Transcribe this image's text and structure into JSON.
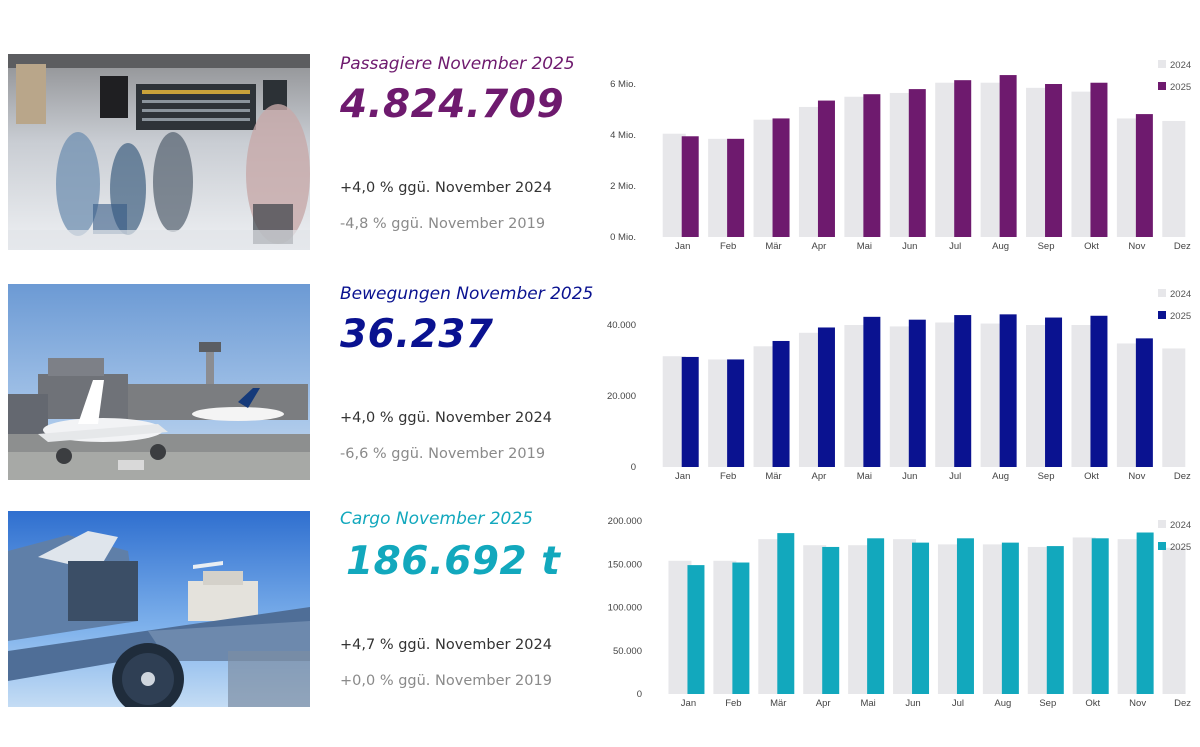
{
  "colors": {
    "prior": "#e7e7ea",
    "passengers": "#6e1a6e",
    "movements": "#0a1290",
    "cargo": "#12a8bd"
  },
  "kpis": [
    {
      "title": "Passagiere November 2025",
      "value": "4.824.709",
      "comparison_2024": "+4,0 % ggü. November 2024",
      "comparison_2019": "-4,8 % ggü. November 2019"
    },
    {
      "title": "Bewegungen November 2025",
      "value": "36.237",
      "comparison_2024": "+4,0 % ggü. November 2024",
      "comparison_2019": "-6,6 % ggü. November 2019"
    },
    {
      "title": "Cargo November 2025",
      "value": "186.692 t",
      "comparison_2024": "+4,7 % ggü. November 2024",
      "comparison_2019": "+0,0 % ggü. November 2019"
    }
  ],
  "images": [
    {
      "name": "terminal-crowd-photo"
    },
    {
      "name": "apron-aircraft-photo"
    },
    {
      "name": "cargo-loading-photo"
    }
  ],
  "chart_data": [
    {
      "type": "bar",
      "title": "Passagiere November 2025",
      "categories": [
        "Jan",
        "Feb",
        "Mär",
        "Apr",
        "Mai",
        "Jun",
        "Jul",
        "Aug",
        "Sep",
        "Okt",
        "Nov",
        "Dez"
      ],
      "series": [
        {
          "name": "2024",
          "values": [
            4.05,
            3.85,
            4.6,
            5.1,
            5.5,
            5.65,
            6.05,
            6.05,
            5.85,
            5.7,
            4.65,
            4.55
          ]
        },
        {
          "name": "2025",
          "values": [
            3.95,
            3.85,
            4.65,
            5.35,
            5.6,
            5.8,
            6.15,
            6.35,
            6.0,
            6.05,
            4.82,
            null
          ]
        }
      ],
      "ylim": [
        0,
        6
      ],
      "yticks": [
        0,
        2,
        4,
        6
      ],
      "ytick_labels": [
        "0 Mio.",
        "2 Mio.",
        "4 Mio.",
        "6 Mio."
      ],
      "legend": [
        "2024",
        "2025"
      ],
      "legend_position": "top-right"
    },
    {
      "type": "bar",
      "title": "Bewegungen November 2025",
      "categories": [
        "Jan",
        "Feb",
        "Mär",
        "Apr",
        "Mai",
        "Jun",
        "Jul",
        "Aug",
        "Sep",
        "Okt",
        "Nov",
        "Dez"
      ],
      "series": [
        {
          "name": "2024",
          "values": [
            31200,
            30300,
            34000,
            37800,
            40000,
            39600,
            40700,
            40400,
            40000,
            40000,
            34800,
            33400
          ]
        },
        {
          "name": "2025",
          "values": [
            31000,
            30300,
            35500,
            39300,
            42300,
            41500,
            42800,
            43000,
            42100,
            42600,
            36237,
            null
          ]
        }
      ],
      "ylim": [
        0,
        40000
      ],
      "yticks": [
        0,
        20000,
        40000
      ],
      "ytick_labels": [
        "0",
        "20.000",
        "40.000"
      ],
      "legend": [
        "2024",
        "2025"
      ],
      "legend_position": "top-right"
    },
    {
      "type": "bar",
      "title": "Cargo November 2025",
      "categories": [
        "Jan",
        "Feb",
        "Mär",
        "Apr",
        "Mai",
        "Jun",
        "Jul",
        "Aug",
        "Sep",
        "Okt",
        "Nov",
        "Dez"
      ],
      "series": [
        {
          "name": "2024",
          "values": [
            154000,
            154000,
            179000,
            172000,
            172000,
            179000,
            173000,
            173000,
            170000,
            181000,
            179000,
            169000
          ]
        },
        {
          "name": "2025",
          "values": [
            149000,
            152000,
            186000,
            170000,
            180000,
            175000,
            180000,
            175000,
            171000,
            180000,
            186692,
            null
          ]
        }
      ],
      "ylim": [
        0,
        200000
      ],
      "yticks": [
        0,
        50000,
        100000,
        150000,
        200000
      ],
      "ytick_labels": [
        "0",
        "50.000",
        "100.000",
        "150.000",
        "200.000"
      ],
      "legend": [
        "2024",
        "2025"
      ],
      "legend_position": "top-right"
    }
  ]
}
